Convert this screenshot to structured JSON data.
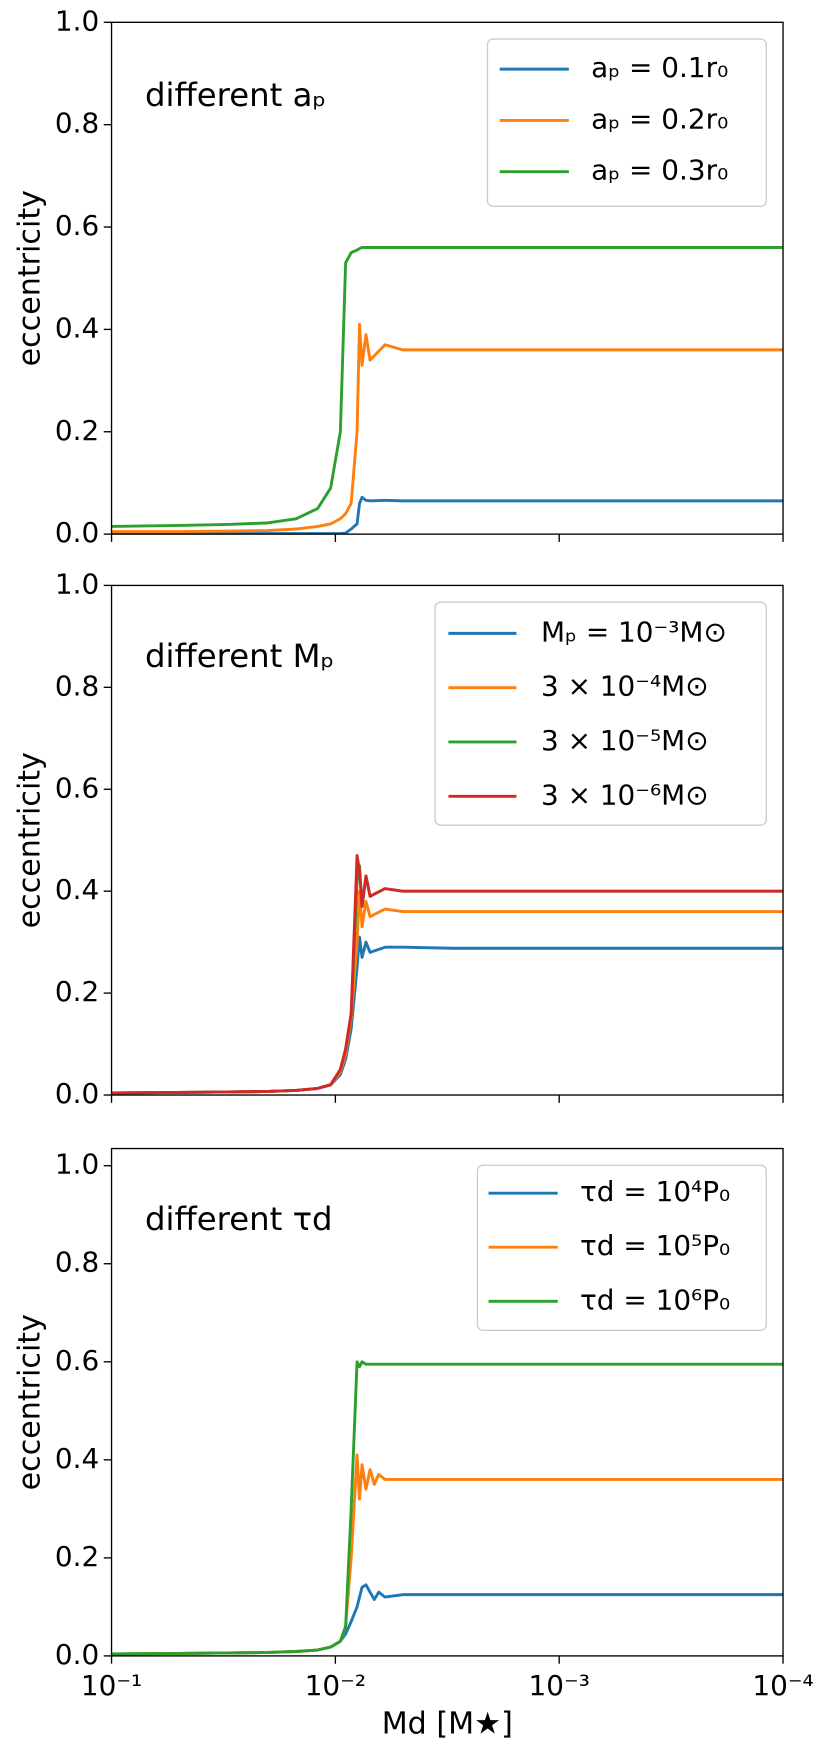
{
  "chart_data": [
    {
      "type": "line",
      "annotation": "different aₚ",
      "y_label": "eccentricity",
      "log_x": true,
      "legend": "upper right",
      "xlim": [
        0.1,
        0.0001
      ],
      "xticks": [
        0.1,
        0.01,
        0.001,
        0.0001
      ],
      "ylim": [
        0,
        1
      ],
      "yticks": [
        {
          "value": 0,
          "label": "0.0"
        },
        0.2,
        0.4,
        0.6,
        0.8,
        {
          "value": 1,
          "label": "1.0"
        }
      ],
      "x": [
        0.1,
        0.05,
        0.03,
        0.02,
        0.015,
        0.012,
        0.0105,
        0.0095,
        0.009,
        0.0085,
        0.008,
        0.0078,
        0.0076,
        0.0073,
        0.007,
        0.006,
        0.005,
        0.003,
        0.001,
        0.0001
      ],
      "series": [
        {
          "name": "aₚ = 0.1r₀",
          "color": "#1f77b4",
          "values": [
            0.001,
            0.001,
            0.001,
            0.001,
            0.001,
            0.001,
            0.001,
            0.001,
            0.002,
            0.01,
            0.02,
            0.06,
            0.072,
            0.066,
            0.065,
            0.066,
            0.065,
            0.065,
            0.065,
            0.065
          ]
        },
        {
          "name": "aₚ = 0.2r₀",
          "color": "#ff7f0e",
          "values": [
            0.005,
            0.005,
            0.006,
            0.007,
            0.01,
            0.015,
            0.02,
            0.03,
            0.04,
            0.06,
            0.2,
            0.41,
            0.33,
            0.39,
            0.34,
            0.37,
            0.36,
            0.36,
            0.36,
            0.36
          ]
        },
        {
          "name": "aₚ = 0.3r₀",
          "color": "#2ca02c",
          "values": [
            0.015,
            0.017,
            0.019,
            0.022,
            0.03,
            0.05,
            0.09,
            0.2,
            0.53,
            0.55,
            0.555,
            0.558,
            0.56,
            0.56,
            0.56,
            0.56,
            0.56,
            0.56,
            0.56,
            0.56
          ]
        }
      ]
    },
    {
      "type": "line",
      "annotation": "different Mₚ",
      "y_label": "eccentricity",
      "log_x": true,
      "legend": "upper right",
      "xlim": [
        0.1,
        0.0001
      ],
      "xticks": [
        0.1,
        0.01,
        0.001,
        0.0001
      ],
      "ylim": [
        0,
        1
      ],
      "yticks": [
        {
          "value": 0,
          "label": "0.0"
        },
        0.2,
        0.4,
        0.6,
        0.8,
        {
          "value": 1,
          "label": "1.0"
        }
      ],
      "x": [
        0.1,
        0.05,
        0.03,
        0.02,
        0.015,
        0.012,
        0.0105,
        0.0095,
        0.009,
        0.0085,
        0.008,
        0.0078,
        0.0076,
        0.0073,
        0.007,
        0.006,
        0.005,
        0.003,
        0.001,
        0.0001
      ],
      "series": [
        {
          "name": "Mₚ = 10⁻³M⊙",
          "color": "#1f77b4",
          "values": [
            0.004,
            0.005,
            0.006,
            0.007,
            0.009,
            0.013,
            0.02,
            0.04,
            0.07,
            0.13,
            0.25,
            0.31,
            0.27,
            0.3,
            0.28,
            0.29,
            0.29,
            0.288,
            0.288,
            0.288
          ]
        },
        {
          "name": "3 × 10⁻⁴M⊙",
          "color": "#ff7f0e",
          "values": [
            0.004,
            0.005,
            0.006,
            0.007,
            0.009,
            0.013,
            0.02,
            0.045,
            0.08,
            0.15,
            0.3,
            0.4,
            0.33,
            0.38,
            0.35,
            0.365,
            0.36,
            0.36,
            0.36,
            0.36
          ]
        },
        {
          "name": "3 × 10⁻⁵M⊙",
          "color": "#2ca02c",
          "values": [
            0.004,
            0.005,
            0.006,
            0.007,
            0.009,
            0.013,
            0.02,
            0.05,
            0.09,
            0.16,
            0.42,
            0.45,
            0.37,
            0.43,
            0.39,
            0.405,
            0.4,
            0.4,
            0.4,
            0.4
          ]
        },
        {
          "name": "3 × 10⁻⁶M⊙",
          "color": "#d62728",
          "values": [
            0.004,
            0.005,
            0.006,
            0.007,
            0.009,
            0.013,
            0.02,
            0.05,
            0.09,
            0.16,
            0.47,
            0.44,
            0.37,
            0.43,
            0.39,
            0.405,
            0.4,
            0.4,
            0.4,
            0.4
          ]
        }
      ]
    },
    {
      "type": "line",
      "annotation": "different τd",
      "y_label": "eccentricity",
      "x_label": "Md [M★]",
      "log_x": true,
      "legend": "upper right",
      "xlim": [
        0.1,
        0.0001
      ],
      "xticks": [
        {
          "value": 0.1,
          "label": "10⁻¹"
        },
        {
          "value": 0.01,
          "label": "10⁻²"
        },
        {
          "value": 0.001,
          "label": "10⁻³"
        },
        {
          "value": 0.0001,
          "label": "10⁻⁴"
        }
      ],
      "ylim": [
        0,
        1.035
      ],
      "yticks": [
        {
          "value": 0,
          "label": "0.0"
        },
        0.2,
        0.4,
        0.6,
        0.8,
        {
          "value": 1,
          "label": "1.0"
        }
      ],
      "x": [
        0.1,
        0.05,
        0.03,
        0.02,
        0.015,
        0.012,
        0.0105,
        0.0095,
        0.009,
        0.0085,
        0.008,
        0.0078,
        0.0076,
        0.0073,
        0.007,
        0.0067,
        0.0064,
        0.006,
        0.005,
        0.003,
        0.001,
        0.0001
      ],
      "series": [
        {
          "name": "τd = 10⁴P₀",
          "color": "#1f77b4",
          "values": [
            0.004,
            0.005,
            0.006,
            0.007,
            0.009,
            0.012,
            0.018,
            0.03,
            0.045,
            0.07,
            0.1,
            0.12,
            0.14,
            0.145,
            0.13,
            0.115,
            0.13,
            0.12,
            0.125,
            0.125,
            0.125,
            0.125
          ]
        },
        {
          "name": "τd = 10⁵P₀",
          "color": "#ff7f0e",
          "values": [
            0.004,
            0.005,
            0.006,
            0.007,
            0.009,
            0.012,
            0.018,
            0.03,
            0.06,
            0.2,
            0.41,
            0.32,
            0.39,
            0.34,
            0.38,
            0.35,
            0.37,
            0.36,
            0.36,
            0.36,
            0.36,
            0.36
          ]
        },
        {
          "name": "τd = 10⁶P₀",
          "color": "#2ca02c",
          "values": [
            0.004,
            0.005,
            0.006,
            0.007,
            0.009,
            0.012,
            0.018,
            0.03,
            0.06,
            0.3,
            0.6,
            0.59,
            0.6,
            0.595,
            0.595,
            0.595,
            0.595,
            0.595,
            0.595,
            0.595,
            0.595,
            0.595
          ]
        }
      ]
    }
  ]
}
